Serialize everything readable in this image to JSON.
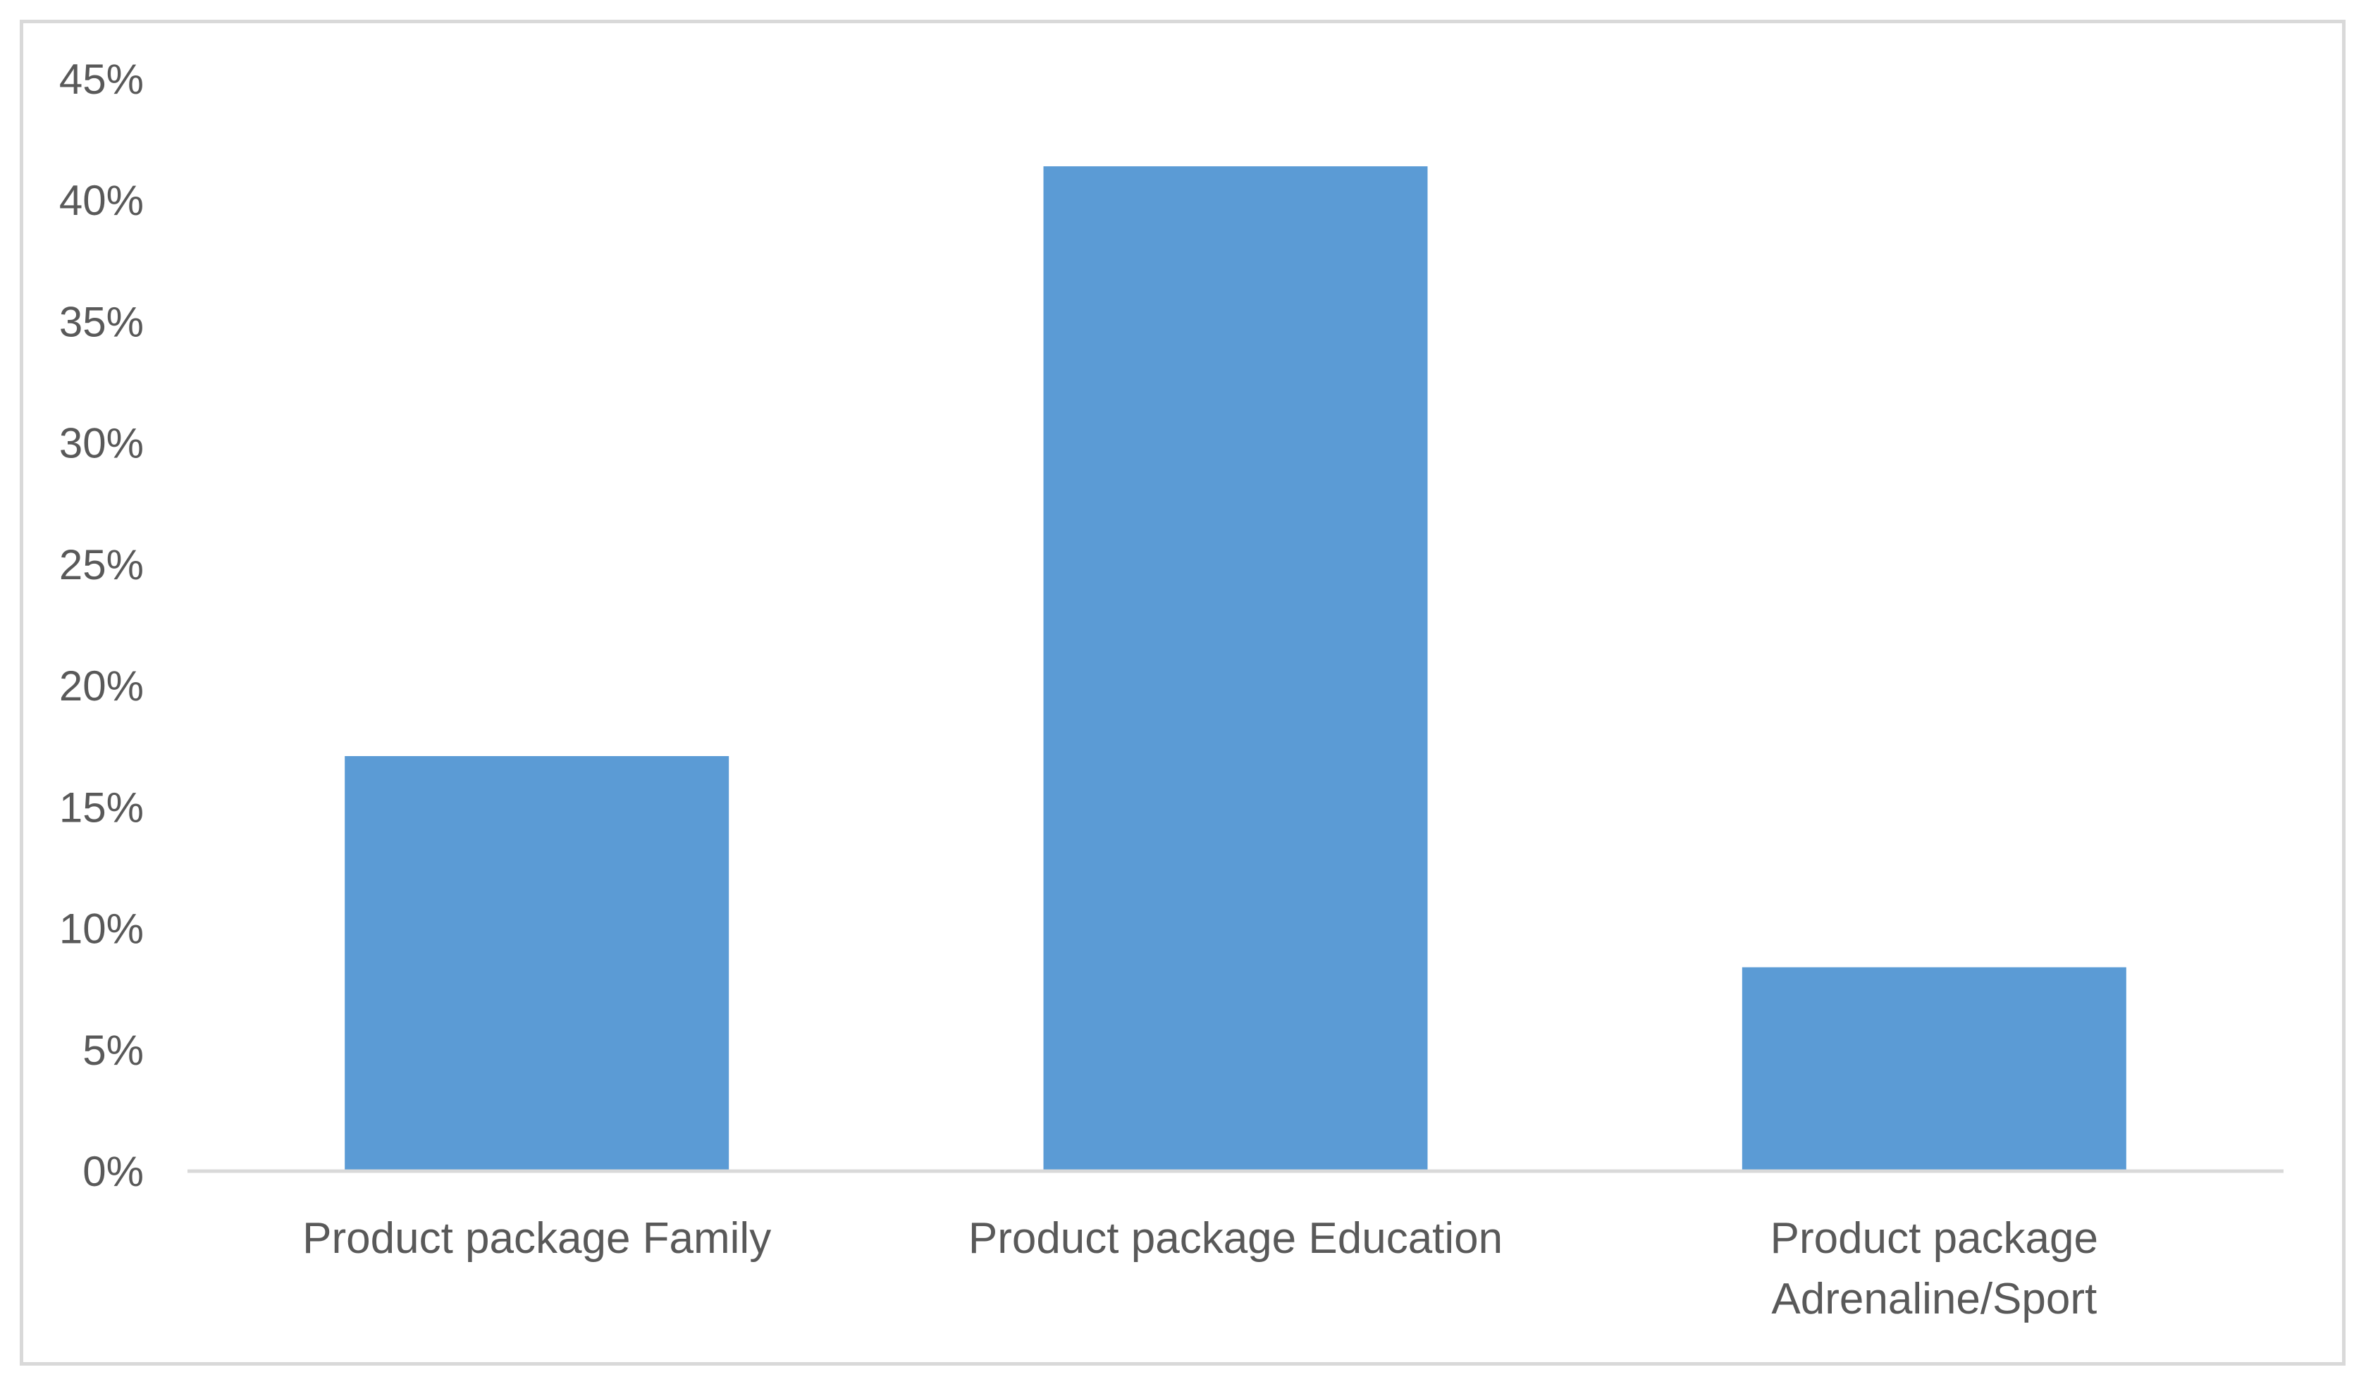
{
  "chart_data": {
    "type": "bar",
    "categories": [
      [
        "Product package Family"
      ],
      [
        "Product package Education"
      ],
      [
        "Product package",
        "Adrenaline/Sport"
      ]
    ],
    "values": [
      0.171,
      0.414,
      0.084
    ],
    "ylim": [
      0,
      0.45
    ],
    "yticks": [
      0,
      0.05,
      0.1,
      0.15,
      0.2,
      0.25,
      0.3,
      0.35,
      0.4,
      0.45
    ],
    "ytick_labels": [
      "0%",
      "5%",
      "10%",
      "15%",
      "20%",
      "25%",
      "30%",
      "35%",
      "40%",
      "45%"
    ],
    "grid": false,
    "legend": "none",
    "bar_color": "#5b9bd5",
    "axis_color": "#d9d9d9"
  }
}
